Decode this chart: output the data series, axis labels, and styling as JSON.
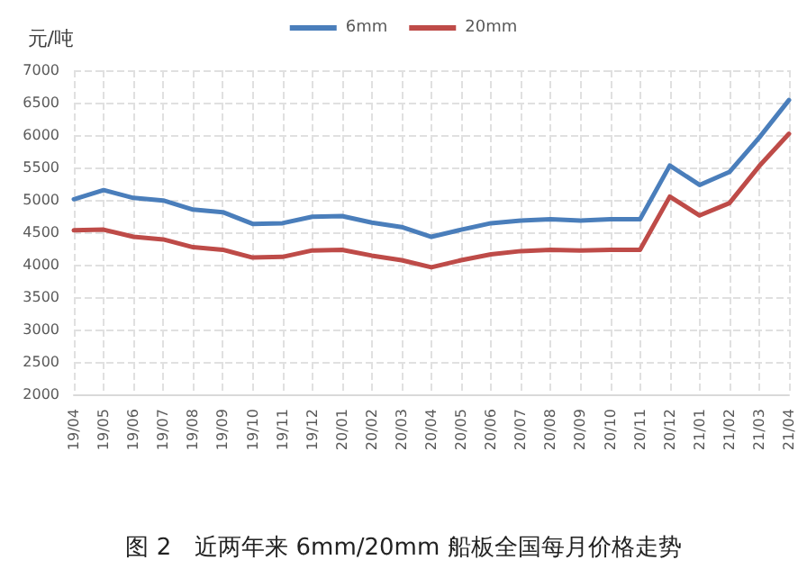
{
  "chart_data": {
    "type": "line",
    "ylabel": "元/吨",
    "categories": [
      "19/04",
      "19/05",
      "19/06",
      "19/07",
      "19/08",
      "19/09",
      "19/10",
      "19/11",
      "19/12",
      "20/01",
      "20/02",
      "20/03",
      "20/04",
      "20/05",
      "20/06",
      "20/07",
      "20/08",
      "20/09",
      "20/10",
      "20/11",
      "20/12",
      "21/01",
      "21/02",
      "21/03",
      "21/04"
    ],
    "series": [
      {
        "name": "6mm",
        "color": "#4a7ebb",
        "values": [
          5010,
          5150,
          5030,
          4990,
          4850,
          4810,
          4630,
          4640,
          4740,
          4750,
          4650,
          4580,
          4430,
          4540,
          4640,
          4680,
          4700,
          4680,
          4700,
          4700,
          5530,
          5230,
          5430,
          5960,
          6540
        ]
      },
      {
        "name": "20mm",
        "color": "#be4b48",
        "values": [
          4530,
          4540,
          4430,
          4390,
          4270,
          4230,
          4110,
          4120,
          4220,
          4230,
          4140,
          4070,
          3960,
          4070,
          4160,
          4210,
          4230,
          4220,
          4230,
          4230,
          5050,
          4760,
          4950,
          5520,
          6020
        ]
      }
    ],
    "ylim": [
      2000,
      7000
    ],
    "yticks": [
      2000,
      2500,
      3000,
      3500,
      4000,
      4500,
      5000,
      5500,
      6000,
      6500,
      7000
    ],
    "grid": true,
    "legend": "top",
    "marker": "none",
    "line_style": "solid",
    "annotations": [
      "图 2　近两年来 6mm/20mm 船板全国每月价格走势"
    ]
  }
}
